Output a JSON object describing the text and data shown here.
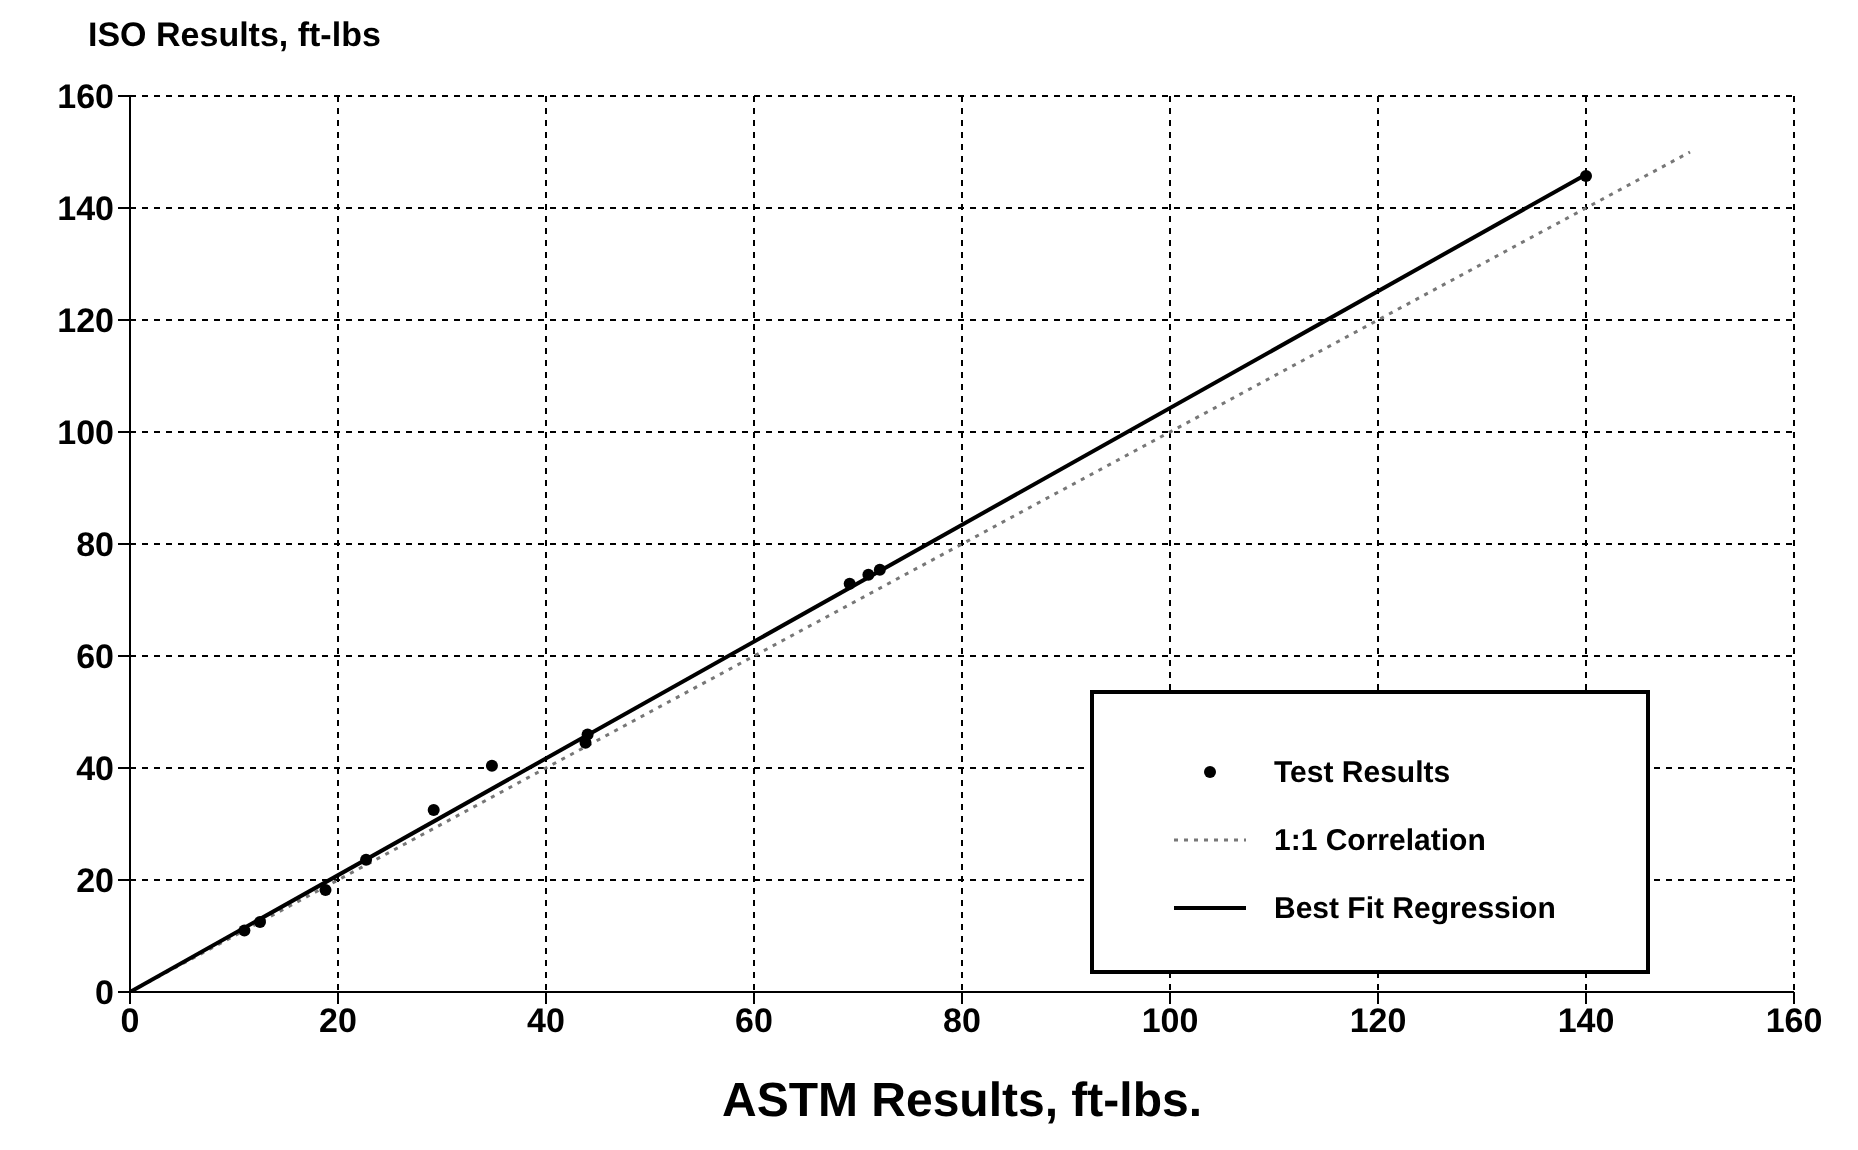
{
  "chart_data": {
    "type": "scatter",
    "xlabel": "ASTM Results, ft-lbs.",
    "ylabel": "ISO Results, ft-lbs",
    "xlim": [
      0,
      160
    ],
    "xticks": [
      0,
      20,
      40,
      60,
      80,
      100,
      120,
      140,
      160
    ],
    "ylim": [
      0,
      160
    ],
    "yticks": [
      0,
      20,
      40,
      60,
      80,
      100,
      120,
      140,
      160
    ],
    "grid": true,
    "legend": "bottom right",
    "series": [
      {
        "name": "Test Results",
        "marker": "circle",
        "color": "#000000",
        "x": [
          11,
          12.5,
          18.8,
          22.7,
          29.2,
          34.8,
          43.8,
          44,
          69.2,
          71,
          72.1,
          140
        ],
        "values": [
          11,
          12.5,
          18.2,
          23.6,
          32.5,
          40.4,
          44.5,
          46,
          72.9,
          74.5,
          75.4,
          145.7
        ]
      },
      {
        "name": "1:1 Correlation",
        "type": "line",
        "line_style": "dotted",
        "color": "#777777",
        "x": [
          0,
          150
        ],
        "values": [
          0,
          150
        ]
      },
      {
        "name": "Best Fit Regression",
        "type": "line",
        "line_style": "solid",
        "color": "#000000",
        "x": [
          0,
          140
        ],
        "values": [
          0,
          146
        ]
      }
    ]
  }
}
